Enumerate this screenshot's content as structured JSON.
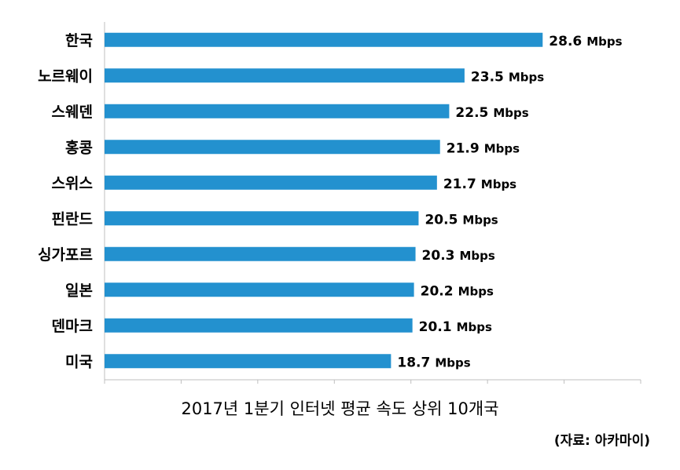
{
  "chart_data": {
    "type": "bar",
    "orientation": "horizontal",
    "categories": [
      "한국",
      "노르웨이",
      "스웨덴",
      "홍콩",
      "스위스",
      "핀란드",
      "싱가포르",
      "일본",
      "덴마크",
      "미국"
    ],
    "values": [
      28.6,
      23.5,
      22.5,
      21.9,
      21.7,
      20.5,
      20.3,
      20.2,
      20.1,
      18.7
    ],
    "value_labels": [
      "28.6",
      "23.5",
      "22.5",
      "21.9",
      "21.7",
      "20.5",
      "20.3",
      "20.2",
      "20.1",
      "18.7"
    ],
    "unit": "Mbps",
    "xlim": [
      0,
      35
    ],
    "grid": false,
    "bar_color": "#2391cf",
    "caption": "2017년 1분기 인터넷 평균 속도 상위 10개국",
    "source": "(자료: 아카마이)"
  }
}
